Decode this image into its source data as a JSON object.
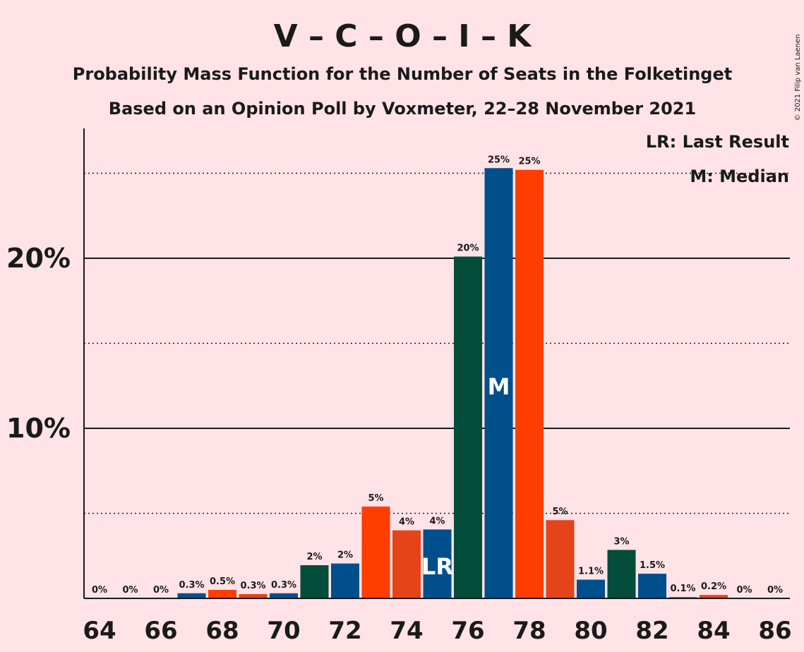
{
  "chart_data": {
    "type": "bar",
    "title": "V – C – O – I – K",
    "subtitle": "Probability Mass Function for the Number of Seats in the Folketinget",
    "subtitle2": "Based on an Opinion Poll by Voxmeter, 22–28 November 2021",
    "copyright": "© 2021 Filip van Laenen",
    "legend": {
      "lr": "LR: Last Result",
      "m": "M: Median",
      "placement": "top-right"
    },
    "ylim": [
      0,
      27.5
    ],
    "y_ticks": [
      {
        "value": 10,
        "label": "10%"
      },
      {
        "value": 20,
        "label": "20%"
      }
    ],
    "dotted_gridlines": [
      5,
      15,
      25
    ],
    "x_ticks": [
      "64",
      "66",
      "68",
      "70",
      "72",
      "74",
      "76",
      "78",
      "80",
      "82",
      "84",
      "86"
    ],
    "last_result_seat": 75,
    "last_result_marker": "LR",
    "median_seat": 77,
    "median_marker": "M",
    "colors": [
      "#034d3a",
      "#004f8d",
      "#ff3d00",
      "#e5431a"
    ],
    "bars": [
      {
        "seat": 64,
        "value": 0,
        "label": "0%",
        "color": 0
      },
      {
        "seat": 65,
        "value": 0,
        "label": "0%",
        "color": 1
      },
      {
        "seat": 66,
        "value": 0,
        "label": "0%",
        "color": 2
      },
      {
        "seat": 67,
        "value": 0.3,
        "label": "0.3%",
        "color": 1
      },
      {
        "seat": 68,
        "value": 0.5,
        "label": "0.5%",
        "color": 2
      },
      {
        "seat": 69,
        "value": 0.25,
        "label": "0.3%",
        "color": 3
      },
      {
        "seat": 70,
        "value": 0.3,
        "label": "0.3%",
        "color": 1
      },
      {
        "seat": 71,
        "value": 1.95,
        "label": "2%",
        "color": 0
      },
      {
        "seat": 72,
        "value": 2.05,
        "label": "2%",
        "color": 1
      },
      {
        "seat": 73,
        "value": 5.4,
        "label": "5%",
        "color": 2
      },
      {
        "seat": 74,
        "value": 4.0,
        "label": "4%",
        "color": 3
      },
      {
        "seat": 75,
        "value": 4.05,
        "label": "4%",
        "color": 1
      },
      {
        "seat": 76,
        "value": 20.1,
        "label": "20%",
        "color": 0
      },
      {
        "seat": 77,
        "value": 25.3,
        "label": "25%",
        "color": 1
      },
      {
        "seat": 78,
        "value": 25.2,
        "label": "25%",
        "color": 2
      },
      {
        "seat": 79,
        "value": 4.6,
        "label": "5%",
        "color": 3
      },
      {
        "seat": 80,
        "value": 1.1,
        "label": "1.1%",
        "color": 1
      },
      {
        "seat": 81,
        "value": 2.85,
        "label": "3%",
        "color": 0
      },
      {
        "seat": 82,
        "value": 1.45,
        "label": "1.5%",
        "color": 1
      },
      {
        "seat": 83,
        "value": 0.08,
        "label": "0.1%",
        "color": 2
      },
      {
        "seat": 84,
        "value": 0.2,
        "label": "0.2%",
        "color": 3
      },
      {
        "seat": 85,
        "value": 0,
        "label": "0%",
        "color": 1
      },
      {
        "seat": 86,
        "value": 0,
        "label": "0%",
        "color": 2
      }
    ]
  }
}
